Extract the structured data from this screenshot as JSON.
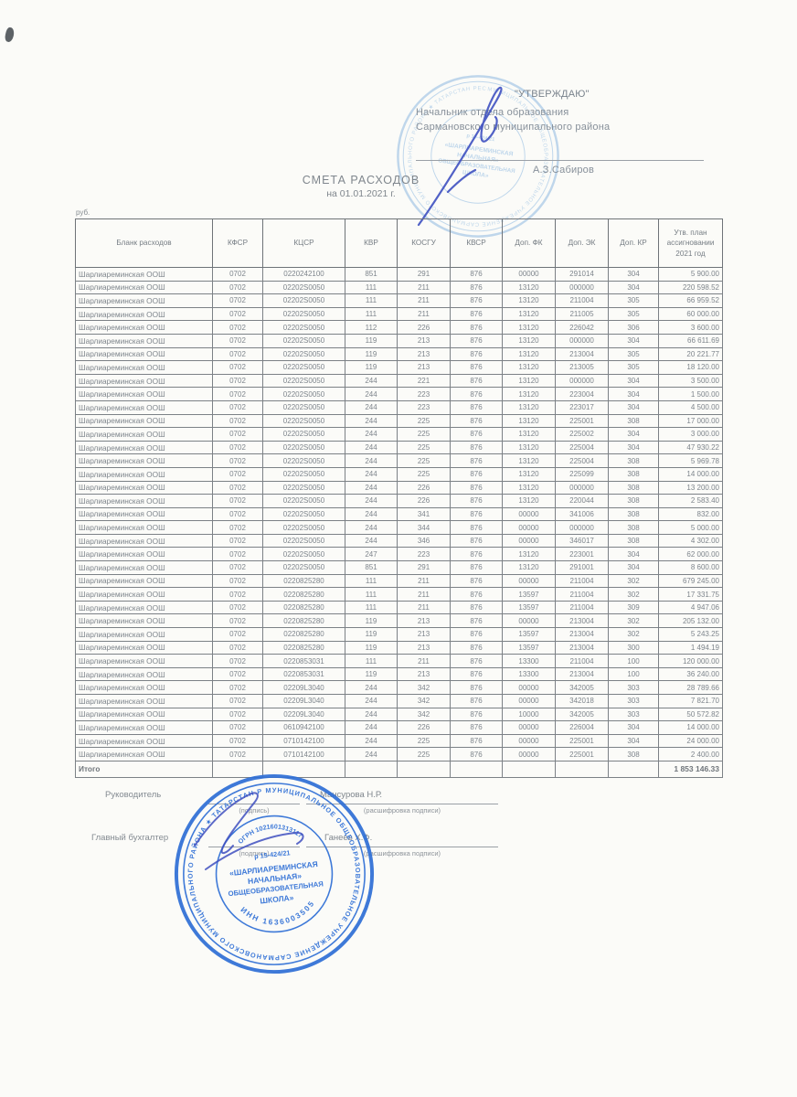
{
  "approval": {
    "title": "\"УТВЕРЖДАЮ\"",
    "line1": "Начальник отдела образования",
    "line2": "Сармановского муниципального района",
    "signatory": "А.З.Сабиров"
  },
  "doc": {
    "title": "СМЕТА РАСХОДОВ",
    "subtitle": "на 01.01.2021 г.",
    "currency": "руб."
  },
  "table": {
    "headers": [
      "Бланк расходов",
      "КФСР",
      "КЦСР",
      "КВР",
      "КОСГУ",
      "КВСР",
      "Доп. ФК",
      "Доп. ЭК",
      "Доп. КР",
      "Утв. план ассигновании 2021 год"
    ],
    "rows": [
      [
        "Шарлиареминская ООШ",
        "0702",
        "0220242100",
        "851",
        "291",
        "876",
        "00000",
        "291014",
        "304",
        "5 900.00"
      ],
      [
        "Шарлиареминская ООШ",
        "0702",
        "02202S0050",
        "111",
        "211",
        "876",
        "13120",
        "000000",
        "304",
        "220 598.52"
      ],
      [
        "Шарлиареминская ООШ",
        "0702",
        "02202S0050",
        "111",
        "211",
        "876",
        "13120",
        "211004",
        "305",
        "66 959.52"
      ],
      [
        "Шарлиареминская ООШ",
        "0702",
        "02202S0050",
        "111",
        "211",
        "876",
        "13120",
        "211005",
        "305",
        "60 000.00"
      ],
      [
        "Шарлиареминская ООШ",
        "0702",
        "02202S0050",
        "112",
        "226",
        "876",
        "13120",
        "226042",
        "306",
        "3 600.00"
      ],
      [
        "Шарлиареминская ООШ",
        "0702",
        "02202S0050",
        "119",
        "213",
        "876",
        "13120",
        "000000",
        "304",
        "66 611.69"
      ],
      [
        "Шарлиареминская ООШ",
        "0702",
        "02202S0050",
        "119",
        "213",
        "876",
        "13120",
        "213004",
        "305",
        "20 221.77"
      ],
      [
        "Шарлиареминская ООШ",
        "0702",
        "02202S0050",
        "119",
        "213",
        "876",
        "13120",
        "213005",
        "305",
        "18 120.00"
      ],
      [
        "Шарлиареминская ООШ",
        "0702",
        "02202S0050",
        "244",
        "221",
        "876",
        "13120",
        "000000",
        "304",
        "3 500.00"
      ],
      [
        "Шарлиареминская ООШ",
        "0702",
        "02202S0050",
        "244",
        "223",
        "876",
        "13120",
        "223004",
        "304",
        "1 500.00"
      ],
      [
        "Шарлиареминская ООШ",
        "0702",
        "02202S0050",
        "244",
        "223",
        "876",
        "13120",
        "223017",
        "304",
        "4 500.00"
      ],
      [
        "Шарлиареминская ООШ",
        "0702",
        "02202S0050",
        "244",
        "225",
        "876",
        "13120",
        "225001",
        "308",
        "17 000.00"
      ],
      [
        "Шарлиареминская ООШ",
        "0702",
        "02202S0050",
        "244",
        "225",
        "876",
        "13120",
        "225002",
        "304",
        "3 000.00"
      ],
      [
        "Шарлиареминская ООШ",
        "0702",
        "02202S0050",
        "244",
        "225",
        "876",
        "13120",
        "225004",
        "304",
        "47 930.22"
      ],
      [
        "Шарлиареминская ООШ",
        "0702",
        "02202S0050",
        "244",
        "225",
        "876",
        "13120",
        "225004",
        "308",
        "5 969.78"
      ],
      [
        "Шарлиареминская ООШ",
        "0702",
        "02202S0050",
        "244",
        "225",
        "876",
        "13120",
        "225099",
        "308",
        "14 000.00"
      ],
      [
        "Шарлиареминская ООШ",
        "0702",
        "02202S0050",
        "244",
        "226",
        "876",
        "13120",
        "000000",
        "308",
        "13 200.00"
      ],
      [
        "Шарлиареминская ООШ",
        "0702",
        "02202S0050",
        "244",
        "226",
        "876",
        "13120",
        "220044",
        "308",
        "2 583.40"
      ],
      [
        "Шарлиареминская ООШ",
        "0702",
        "02202S0050",
        "244",
        "341",
        "876",
        "00000",
        "341006",
        "308",
        "832.00"
      ],
      [
        "Шарлиареминская ООШ",
        "0702",
        "02202S0050",
        "244",
        "344",
        "876",
        "00000",
        "000000",
        "308",
        "5 000.00"
      ],
      [
        "Шарлиареминская ООШ",
        "0702",
        "02202S0050",
        "244",
        "346",
        "876",
        "00000",
        "346017",
        "308",
        "4 302.00"
      ],
      [
        "Шарлиареминская ООШ",
        "0702",
        "02202S0050",
        "247",
        "223",
        "876",
        "13120",
        "223001",
        "304",
        "62 000.00"
      ],
      [
        "Шарлиареминская ООШ",
        "0702",
        "02202S0050",
        "851",
        "291",
        "876",
        "13120",
        "291001",
        "304",
        "8 600.00"
      ],
      [
        "Шарлиареминская ООШ",
        "0702",
        "0220825280",
        "111",
        "211",
        "876",
        "00000",
        "211004",
        "302",
        "679 245.00"
      ],
      [
        "Шарлиареминская ООШ",
        "0702",
        "0220825280",
        "111",
        "211",
        "876",
        "13597",
        "211004",
        "302",
        "17 331.75"
      ],
      [
        "Шарлиареминская ООШ",
        "0702",
        "0220825280",
        "111",
        "211",
        "876",
        "13597",
        "211004",
        "309",
        "4 947.06"
      ],
      [
        "Шарлиареминская ООШ",
        "0702",
        "0220825280",
        "119",
        "213",
        "876",
        "00000",
        "213004",
        "302",
        "205 132.00"
      ],
      [
        "Шарлиареминская ООШ",
        "0702",
        "0220825280",
        "119",
        "213",
        "876",
        "13597",
        "213004",
        "302",
        "5 243.25"
      ],
      [
        "Шарлиареминская ООШ",
        "0702",
        "0220825280",
        "119",
        "213",
        "876",
        "13597",
        "213004",
        "300",
        "1 494.19"
      ],
      [
        "Шарлиареминская ООШ",
        "0702",
        "0220853031",
        "111",
        "211",
        "876",
        "13300",
        "211004",
        "100",
        "120 000.00"
      ],
      [
        "Шарлиареминская ООШ",
        "0702",
        "0220853031",
        "119",
        "213",
        "876",
        "13300",
        "213004",
        "100",
        "36 240.00"
      ],
      [
        "Шарлиареминская ООШ",
        "0702",
        "02209L3040",
        "244",
        "342",
        "876",
        "00000",
        "342005",
        "303",
        "28 789.66"
      ],
      [
        "Шарлиареминская ООШ",
        "0702",
        "02209L3040",
        "244",
        "342",
        "876",
        "00000",
        "342018",
        "303",
        "7 821.70"
      ],
      [
        "Шарлиареминская ООШ",
        "0702",
        "02209L3040",
        "244",
        "342",
        "876",
        "10000",
        "342005",
        "303",
        "50 572.82"
      ],
      [
        "Шарлиареминская ООШ",
        "0702",
        "0610942100",
        "244",
        "226",
        "876",
        "00000",
        "226004",
        "304",
        "14 000.00"
      ],
      [
        "Шарлиареминская ООШ",
        "0702",
        "0710142100",
        "244",
        "225",
        "876",
        "00000",
        "225001",
        "304",
        "24 000.00"
      ],
      [
        "Шарлиареминская ООШ",
        "0702",
        "0710142100",
        "244",
        "225",
        "876",
        "00000",
        "225001",
        "308",
        "2 400.00"
      ]
    ],
    "total_label": "Итого",
    "total_value": "1 853 146.33"
  },
  "signatures": {
    "head_label": "Руководитель",
    "head_name": "Мансурова Н.Р.",
    "accountant_label": "Главный бухгалтер",
    "accountant_name": "Ганеев Х.Ф.",
    "sign_caption": "(подпись)",
    "decode_caption": "(расшифровка подписи)"
  },
  "stamp": {
    "ring_text": "МУНИЦИПАЛЬНОЕ ОБЩЕОБРАЗОВАТЕЛЬНОЕ УЧРЕЖДЕНИЕ САРМАНОВСКОГО МУНИЦИПАЛЬНОГО РАЙОНА ★ ТАТАРСТАН РЕСПУБЛИКАСЫ ★",
    "ogrn": "ОГРН 1021601313117",
    "reg": "р 15-424/21",
    "name_line1": "«ШАРЛИАРЕМИНСКАЯ",
    "name_line2": "НАЧАЛЬНАЯ»",
    "name_line3": "ОБЩЕОБРАЗОВАТЕЛЬНАЯ",
    "name_line4": "ШКОЛА»",
    "inn": "ИНН 1636003505"
  },
  "colors": {
    "stamp_blue": "#2e6fd6",
    "faded_stamp_blue": "#7fb0dd",
    "pen_ink": "#3f51c1",
    "paper": "#fbfbf8",
    "scan_text": "#7e858c"
  }
}
